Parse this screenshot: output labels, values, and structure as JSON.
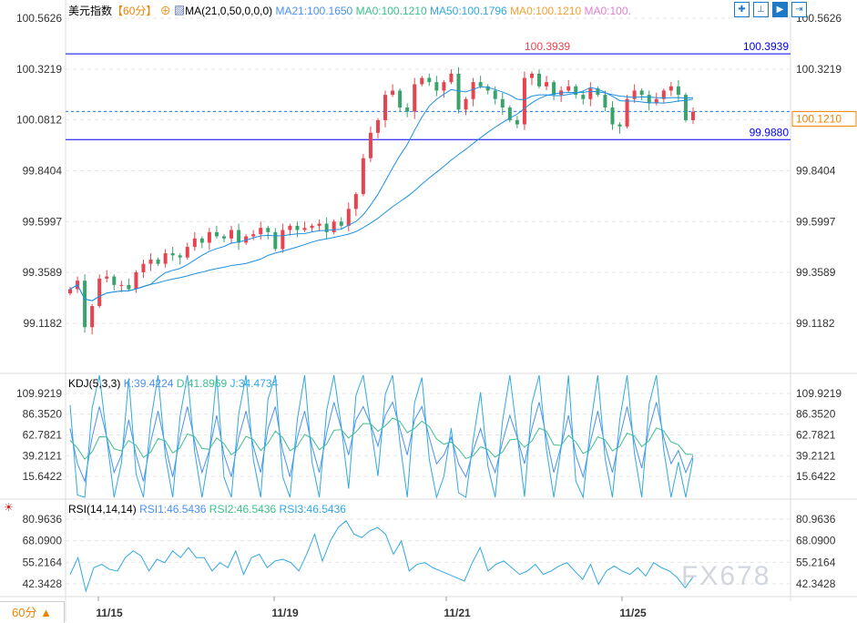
{
  "header": {
    "symbol": "美元指数",
    "timeframe": "【60分】",
    "ma_label": "MA(21,0,50,0,0,0)",
    "ma21": "MA21:100.1650",
    "ma0a": "MA0:100.1210",
    "ma50": "MA50:100.1796",
    "ma0b": "MA0:100.1210",
    "ma0c": "MA0:100."
  },
  "tools": [
    "crosshair",
    "range",
    "play",
    "export"
  ],
  "price_axis": [
    "100.5626",
    "100.3219",
    "100.0812",
    "99.8404",
    "99.5997",
    "99.3589",
    "99.1182"
  ],
  "lines": {
    "high": "100.3939",
    "high_marker": "100.3939",
    "low": "99.9880",
    "current": "100.1210"
  },
  "kdj": {
    "label": "KDJ(5,3,3)",
    "k": "K:39.4224",
    "d": "D:41.8969",
    "j": "J:34.4734",
    "axis": [
      "109.9219",
      "86.3520",
      "62.7821",
      "39.2121",
      "15.6422"
    ]
  },
  "rsi": {
    "label": "RSI(14,14,14)",
    "r1": "RSI1:46.5436",
    "r2": "RSI2:46.5436",
    "r3": "RSI3:46.5436",
    "axis": [
      "80.9636",
      "68.0900",
      "55.2164",
      "42.3428"
    ]
  },
  "x_axis": [
    "11/15",
    "11/19",
    "11/21",
    "11/25"
  ],
  "timeframe_button": "60分 ▲",
  "watermark": "FX678",
  "colors": {
    "up": "#e8444f",
    "down": "#3aa36c",
    "ma": "#1e90e0",
    "hline": "#0000ff",
    "current": "#f08300"
  },
  "chart_data": {
    "type": "candlestick",
    "close": [
      99.28,
      99.32,
      99.1,
      99.2,
      99.33,
      99.34,
      99.3,
      99.3,
      99.28,
      99.36,
      99.4,
      99.42,
      99.4,
      99.45,
      99.44,
      99.43,
      99.48,
      99.52,
      99.5,
      99.55,
      99.53,
      99.52,
      99.56,
      99.5,
      99.53,
      99.54,
      99.57,
      99.55,
      99.47,
      99.56,
      99.58,
      99.56,
      99.57,
      99.58,
      99.59,
      99.55,
      99.6,
      99.58,
      99.66,
      99.73,
      99.9,
      100.02,
      100.08,
      100.2,
      100.22,
      100.14,
      100.12,
      100.25,
      100.28,
      100.26,
      100.22,
      100.26,
      100.3,
      100.13,
      100.18,
      100.26,
      100.24,
      100.22,
      100.18,
      100.14,
      100.08,
      100.06,
      100.28,
      100.3,
      100.24,
      100.26,
      100.2,
      100.22,
      100.24,
      100.2,
      100.18,
      100.23,
      100.2,
      100.14,
      100.06,
      100.05,
      100.18,
      100.22,
      100.2,
      100.16,
      100.18,
      100.22,
      100.24,
      100.2,
      100.08,
      100.12
    ],
    "ylim": [
      99.1182,
      100.5626
    ],
    "kdj_k": [
      70,
      30,
      10,
      60,
      95,
      60,
      20,
      40,
      80,
      40,
      10,
      55,
      90,
      50,
      15,
      60,
      95,
      55,
      20,
      45,
      85,
      40,
      15,
      60,
      90,
      50,
      20,
      70,
      95,
      45,
      15,
      60,
      90,
      50,
      20,
      65,
      100,
      70,
      40,
      80,
      95,
      75,
      50,
      85,
      100,
      70,
      40,
      80,
      95,
      60,
      30,
      40,
      60,
      30,
      15,
      45,
      70,
      40,
      20,
      55,
      85,
      60,
      30,
      70,
      100,
      60,
      20,
      50,
      85,
      40,
      15,
      55,
      90,
      50,
      20,
      60,
      95,
      55,
      25,
      70,
      100,
      60,
      30,
      45,
      20,
      39
    ],
    "rsi": [
      48,
      58,
      38,
      52,
      54,
      51,
      50,
      58,
      62,
      59,
      50,
      57,
      55,
      62,
      58,
      64,
      58,
      58,
      50,
      55,
      52,
      62,
      48,
      58,
      60,
      52,
      56,
      57,
      55,
      50,
      60,
      72,
      56,
      68,
      76,
      80,
      72,
      70,
      74,
      76,
      72,
      60,
      68,
      50,
      54,
      55,
      52,
      50,
      48,
      46,
      44,
      55,
      64,
      50,
      54,
      56,
      52,
      48,
      50,
      54,
      48,
      50,
      53,
      55,
      50,
      45,
      54,
      42,
      50,
      53,
      50,
      48,
      52,
      47,
      55,
      52,
      50,
      46,
      40,
      46.5
    ],
    "x_ticks": [
      "11/15",
      "11/19",
      "11/21",
      "11/25"
    ]
  }
}
